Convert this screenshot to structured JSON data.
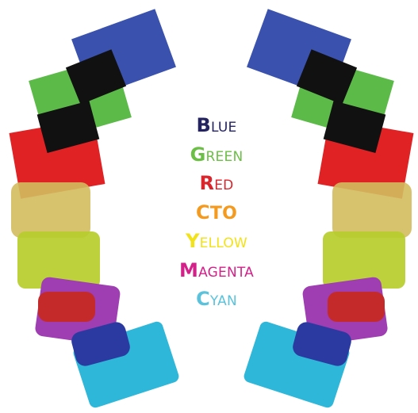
{
  "labels": [
    {
      "text": "BLUE",
      "color": "#24235f"
    },
    {
      "text": "GREEN",
      "color": "#6cbf45"
    },
    {
      "text": "RED",
      "color": "#d9252b"
    },
    {
      "text": "CTO",
      "color": "#f39a1f"
    },
    {
      "text": "YELLOW",
      "color": "#f2e21a"
    },
    {
      "text": "MAGENTA",
      "color": "#d42189"
    },
    {
      "text": "CYAN",
      "color": "#5bc2dc"
    }
  ]
}
